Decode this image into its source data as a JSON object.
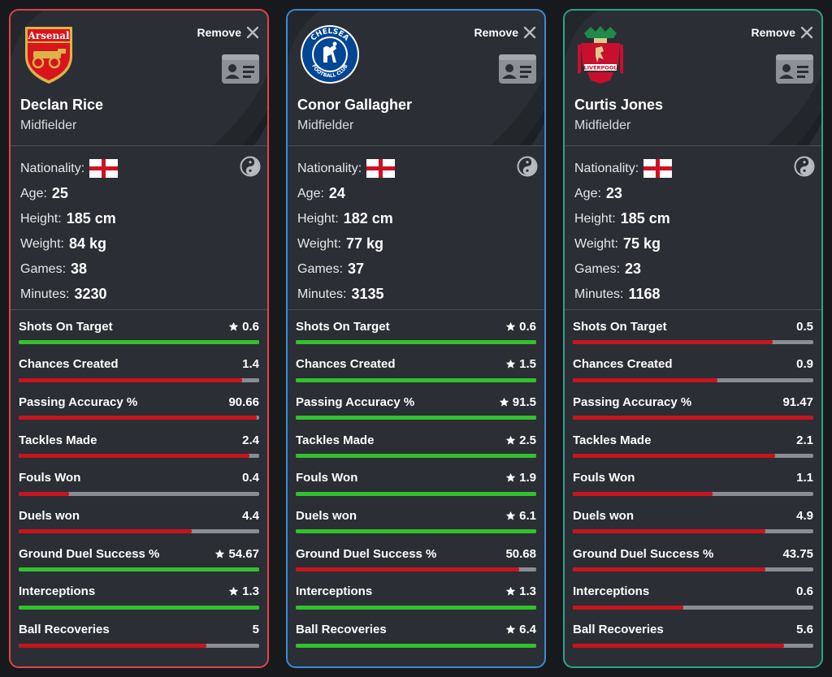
{
  "colors": {
    "win_green": "#33c22d",
    "loss_red": "#c8141e",
    "bar_track": "#8a8d92",
    "card_bg": "#2b2e34"
  },
  "remove_label": "Remove",
  "info_labels": {
    "nationality": "Nationality:",
    "age": "Age:",
    "height": "Height:",
    "weight": "Weight:",
    "games": "Games:",
    "minutes": "Minutes:"
  },
  "stat_labels": [
    "Shots On Target",
    "Chances Created",
    "Passing Accuracy %",
    "Tackles Made",
    "Fouls Won",
    "Duels won",
    "Ground Duel Success %",
    "Interceptions",
    "Ball Recoveries"
  ],
  "players": [
    {
      "name": "Declan Rice",
      "position": "Midfielder",
      "club_crest": "arsenal-crest",
      "crest_text": "Arsenal",
      "border_color": "#e0454b",
      "nationality_flag": "england-flag",
      "age": "25",
      "height": "185 cm",
      "weight": "84 kg",
      "games": "38",
      "minutes": "3230",
      "stats": [
        {
          "value": "0.6",
          "best": true,
          "fill": 1.0
        },
        {
          "value": "1.4",
          "best": false,
          "fill": 0.93
        },
        {
          "value": "90.66",
          "best": false,
          "fill": 0.99
        },
        {
          "value": "2.4",
          "best": false,
          "fill": 0.96
        },
        {
          "value": "0.4",
          "best": false,
          "fill": 0.21
        },
        {
          "value": "4.4",
          "best": false,
          "fill": 0.72
        },
        {
          "value": "54.67",
          "best": true,
          "fill": 1.0
        },
        {
          "value": "1.3",
          "best": true,
          "fill": 1.0
        },
        {
          "value": "5",
          "best": false,
          "fill": 0.78
        }
      ]
    },
    {
      "name": "Conor Gallagher",
      "position": "Midfielder",
      "club_crest": "chelsea-crest",
      "crest_text": "CHELSEA",
      "crest_subtext": "FOOTBALL CLUB",
      "border_color": "#3c8ad8",
      "nationality_flag": "england-flag",
      "age": "24",
      "height": "182 cm",
      "weight": "77 kg",
      "games": "37",
      "minutes": "3135",
      "stats": [
        {
          "value": "0.6",
          "best": true,
          "fill": 1.0
        },
        {
          "value": "1.5",
          "best": true,
          "fill": 1.0
        },
        {
          "value": "91.5",
          "best": true,
          "fill": 1.0
        },
        {
          "value": "2.5",
          "best": true,
          "fill": 1.0
        },
        {
          "value": "1.9",
          "best": true,
          "fill": 1.0
        },
        {
          "value": "6.1",
          "best": true,
          "fill": 1.0
        },
        {
          "value": "50.68",
          "best": false,
          "fill": 0.93
        },
        {
          "value": "1.3",
          "best": true,
          "fill": 1.0
        },
        {
          "value": "6.4",
          "best": true,
          "fill": 1.0
        }
      ]
    },
    {
      "name": "Curtis Jones",
      "position": "Midfielder",
      "club_crest": "liverpool-crest",
      "crest_text": "LIVERPOOL",
      "border_color": "#2aa38a",
      "nationality_flag": "england-flag",
      "age": "23",
      "height": "185 cm",
      "weight": "75 kg",
      "games": "23",
      "minutes": "1168",
      "stats": [
        {
          "value": "0.5",
          "best": false,
          "fill": 0.83
        },
        {
          "value": "0.9",
          "best": false,
          "fill": 0.6
        },
        {
          "value": "91.47",
          "best": false,
          "fill": 1.0
        },
        {
          "value": "2.1",
          "best": false,
          "fill": 0.84
        },
        {
          "value": "1.1",
          "best": false,
          "fill": 0.58
        },
        {
          "value": "4.9",
          "best": false,
          "fill": 0.8
        },
        {
          "value": "43.75",
          "best": false,
          "fill": 0.8
        },
        {
          "value": "0.6",
          "best": false,
          "fill": 0.46
        },
        {
          "value": "5.6",
          "best": false,
          "fill": 0.88
        }
      ]
    }
  ]
}
